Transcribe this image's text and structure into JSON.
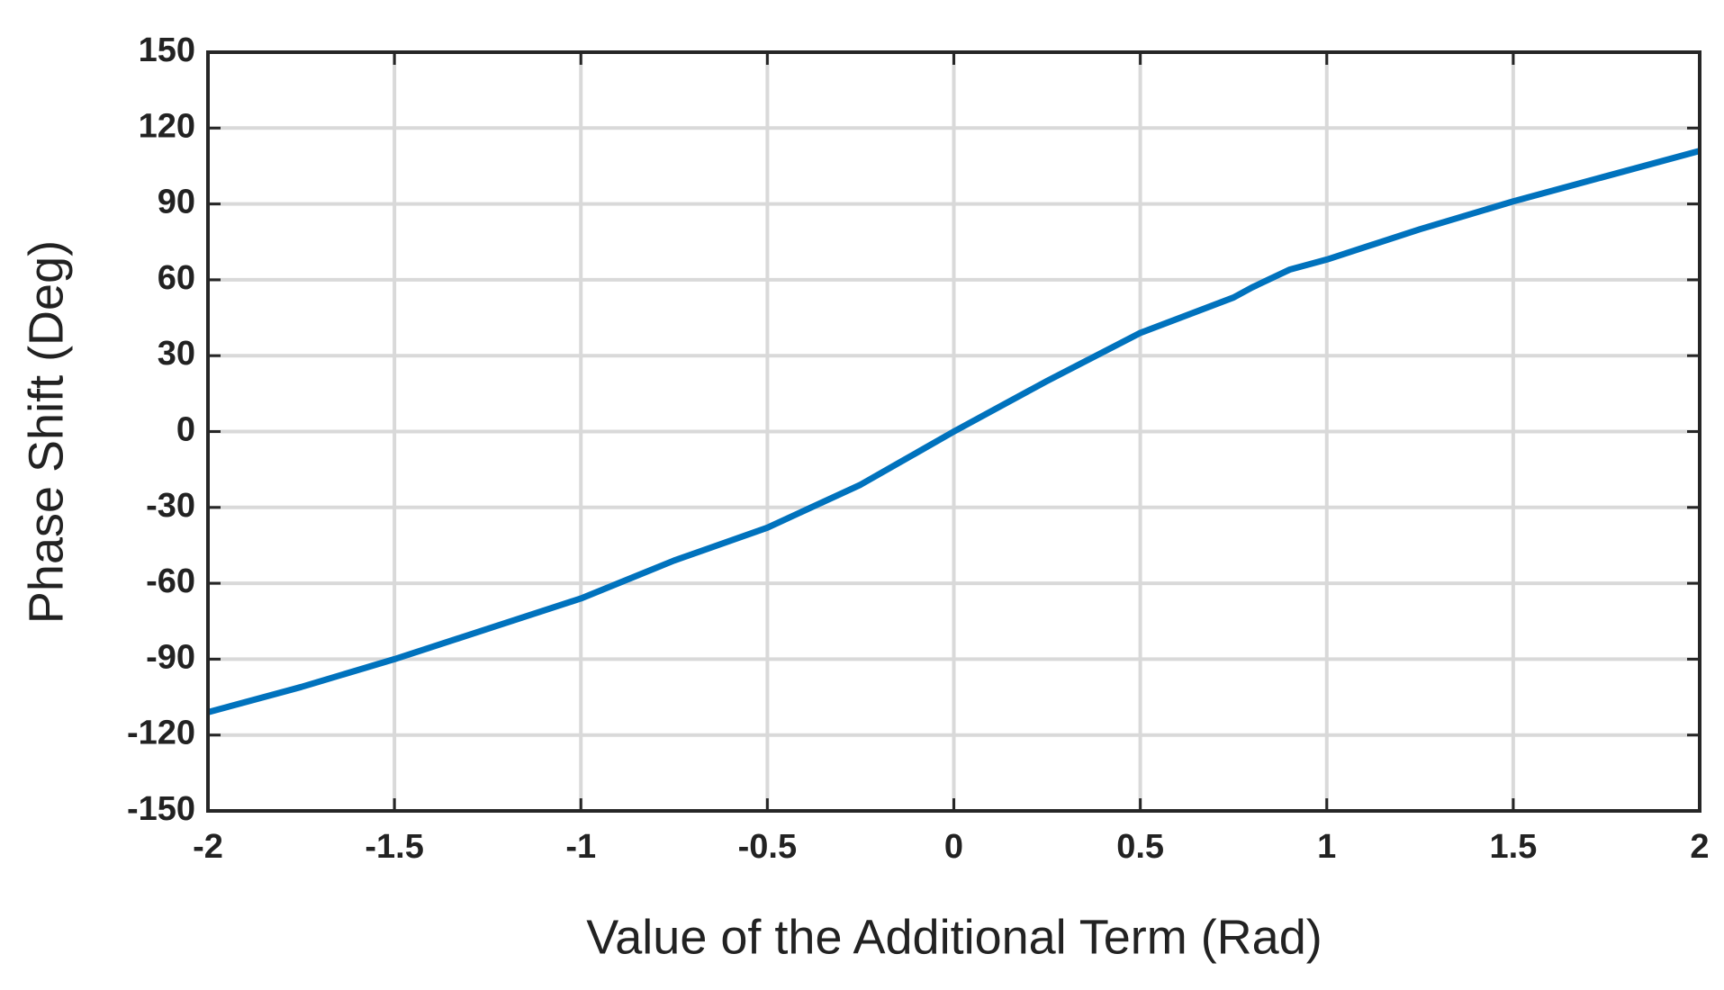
{
  "chart_data": {
    "type": "line",
    "x_label": "Value of the Additional Term (Rad)",
    "y_label": "Phase Shift (Deg)",
    "x": [
      -2,
      -1.75,
      -1.5,
      -1.25,
      -1,
      -0.75,
      -0.5,
      -0.25,
      0,
      0.25,
      0.5,
      0.75,
      0.8,
      0.9,
      1,
      1.25,
      1.5,
      1.75,
      2
    ],
    "series": [
      {
        "name": "Phase Shift",
        "color": "#0072bd",
        "values": [
          -111,
          -101,
          -90,
          -78,
          -66,
          -51,
          -38,
          -21,
          0,
          20,
          39,
          53,
          57,
          64,
          68,
          80,
          91,
          101,
          111
        ]
      }
    ],
    "xlim": [
      -2,
      2
    ],
    "xticks": [
      -2,
      -1.5,
      -1,
      -0.5,
      0,
      0.5,
      1,
      1.5,
      2
    ],
    "ylim": [
      -150,
      150
    ],
    "yticks": [
      -150,
      -120,
      -90,
      -60,
      -30,
      0,
      30,
      60,
      90,
      120,
      150
    ],
    "grid": true
  }
}
